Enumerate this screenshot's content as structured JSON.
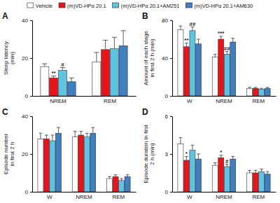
{
  "chart_data": [
    {
      "type": "bar",
      "title": "A",
      "ylabel": [
        "Sleep latency",
        "(min)"
      ],
      "legend": "top",
      "categories": [
        "NREM",
        "REM"
      ],
      "ylim": [
        0,
        40
      ],
      "yticks": [
        0,
        20,
        40
      ],
      "series": [
        {
          "name": "Vehicle",
          "color": "#ffffff",
          "values": [
            15.5,
            18
          ],
          "errors": [
            1.5,
            5
          ],
          "significance": [
            null,
            null
          ]
        },
        {
          "name": "(m)VD-HPα 20.1",
          "color": "#e8141c",
          "values": [
            9.5,
            24.5
          ],
          "errors": [
            1,
            5
          ],
          "significance": [
            "**",
            null
          ]
        },
        {
          "name": "(m)VD-HPα 20.1+AM251",
          "color": "#5fc3e4",
          "values": [
            13.5,
            25
          ],
          "errors": [
            1.5,
            6
          ],
          "significance": [
            "#",
            null
          ]
        },
        {
          "name": "(m)VD-HPα 20.1+AM630",
          "color": "#3f7fc0",
          "values": [
            7.5,
            26.5
          ],
          "errors": [
            2,
            8
          ],
          "significance": [
            null,
            null
          ]
        }
      ]
    },
    {
      "type": "bar",
      "title": "B",
      "ylabel": [
        "Amount of each stage",
        "in first 2 h (min)"
      ],
      "categories": [
        "W",
        "NREM",
        "REM"
      ],
      "ylim": [
        0,
        80
      ],
      "yticks": [
        0,
        40,
        80
      ],
      "series": [
        {
          "color": "#ffffff",
          "values": [
            70,
            41,
            8
          ],
          "errors": [
            4,
            3,
            1
          ],
          "significance": [
            null,
            null,
            null
          ]
        },
        {
          "color": "#e8141c",
          "values": [
            52,
            60,
            8
          ],
          "errors": [
            4,
            3,
            1
          ],
          "significance": [
            "**",
            "***",
            null
          ]
        },
        {
          "color": "#5fc3e4",
          "values": [
            69,
            44,
            7
          ],
          "errors": [
            4,
            3,
            1
          ],
          "significance": [
            "##",
            "##",
            null
          ]
        },
        {
          "color": "#3f7fc0",
          "values": [
            55,
            57,
            8
          ],
          "errors": [
            5,
            4,
            1
          ],
          "significance": [
            null,
            null,
            null
          ]
        }
      ]
    },
    {
      "type": "bar",
      "title": "C",
      "ylabel": [
        "Episode number",
        "in first 2 h"
      ],
      "categories": [
        "W",
        "NREM",
        "REM"
      ],
      "ylim": [
        0,
        40
      ],
      "yticks": [
        0,
        20,
        40
      ],
      "series": [
        {
          "color": "#ffffff",
          "values": [
            28,
            29,
            7
          ],
          "errors": [
            3,
            3,
            1
          ]
        },
        {
          "color": "#e8141c",
          "values": [
            28,
            30,
            8
          ],
          "errors": [
            2,
            2,
            1
          ]
        },
        {
          "color": "#5fc3e4",
          "values": [
            27,
            29,
            6
          ],
          "errors": [
            3,
            2,
            1
          ]
        },
        {
          "color": "#3f7fc0",
          "values": [
            31,
            31,
            8
          ],
          "errors": [
            3,
            3,
            1
          ]
        }
      ]
    },
    {
      "type": "bar",
      "title": "D",
      "ylabel": [
        "Episode duration in first",
        "2 h (min)"
      ],
      "categories": [
        "W",
        "NREM",
        "REM"
      ],
      "ylim": [
        0,
        6
      ],
      "yticks": [
        0,
        3,
        6
      ],
      "series": [
        {
          "color": "#ffffff",
          "values": [
            3.8,
            2.1,
            1.5
          ],
          "errors": [
            0.5,
            0.2,
            0.2
          ],
          "significance": [
            null,
            null,
            null
          ]
        },
        {
          "color": "#e8141c",
          "values": [
            2.5,
            2.7,
            1.5
          ],
          "errors": [
            0.3,
            0.2,
            0.2
          ],
          "significance": [
            "*",
            "*",
            null
          ]
        },
        {
          "color": "#5fc3e4",
          "values": [
            3.3,
            2.0,
            1.6
          ],
          "errors": [
            0.4,
            0.2,
            0.2
          ],
          "significance": [
            null,
            "#",
            null
          ]
        },
        {
          "color": "#3f7fc0",
          "values": [
            2.6,
            2.6,
            1.4
          ],
          "errors": [
            0.4,
            0.2,
            0.2
          ],
          "significance": [
            null,
            null,
            null
          ]
        }
      ]
    }
  ]
}
